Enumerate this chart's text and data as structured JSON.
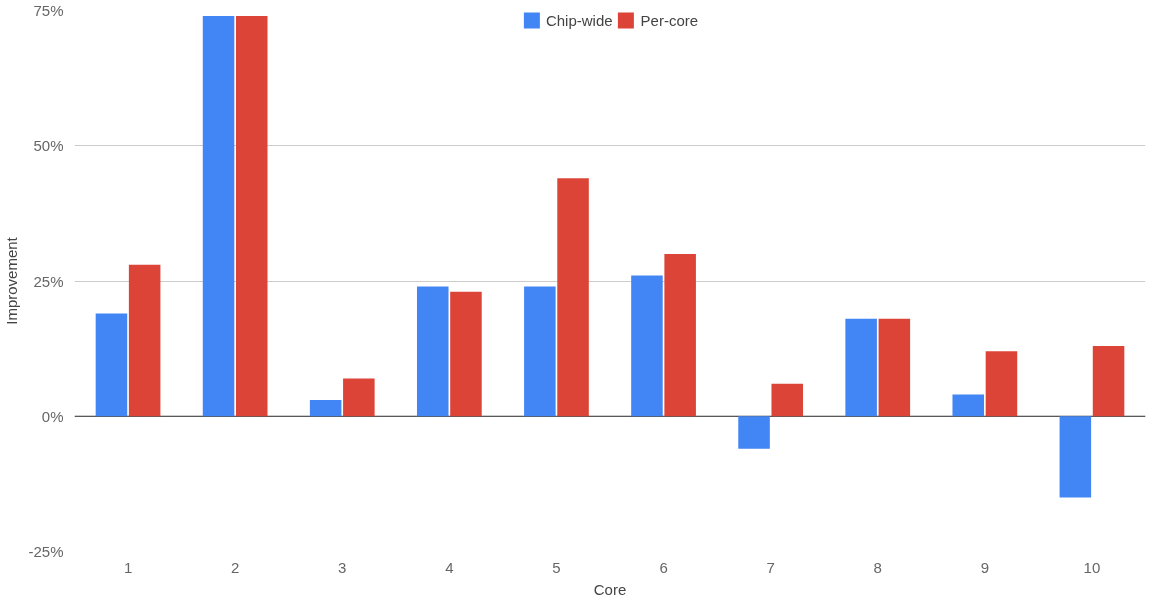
{
  "chart_data": {
    "type": "bar",
    "xlabel": "Core",
    "ylabel": "Improvement",
    "categories": [
      "1",
      "2",
      "3",
      "4",
      "5",
      "6",
      "7",
      "8",
      "9",
      "10"
    ],
    "series": [
      {
        "name": "Chip-wide",
        "color": "#4285f4",
        "values": [
          19,
          74,
          3,
          24,
          24,
          26,
          -6,
          18,
          4,
          -15
        ]
      },
      {
        "name": "Per-core",
        "color": "#db4437",
        "values": [
          28,
          74,
          7,
          23,
          44,
          30,
          6,
          18,
          12,
          13
        ]
      }
    ],
    "ylim": [
      -25,
      75
    ],
    "yticks": [
      {
        "value": -25,
        "label": "-25%"
      },
      {
        "value": 0,
        "label": "0%"
      },
      {
        "value": 25,
        "label": "25%"
      },
      {
        "value": 50,
        "label": "50%"
      },
      {
        "value": 75,
        "label": "75%"
      }
    ],
    "grid": "y",
    "legend": "top"
  }
}
